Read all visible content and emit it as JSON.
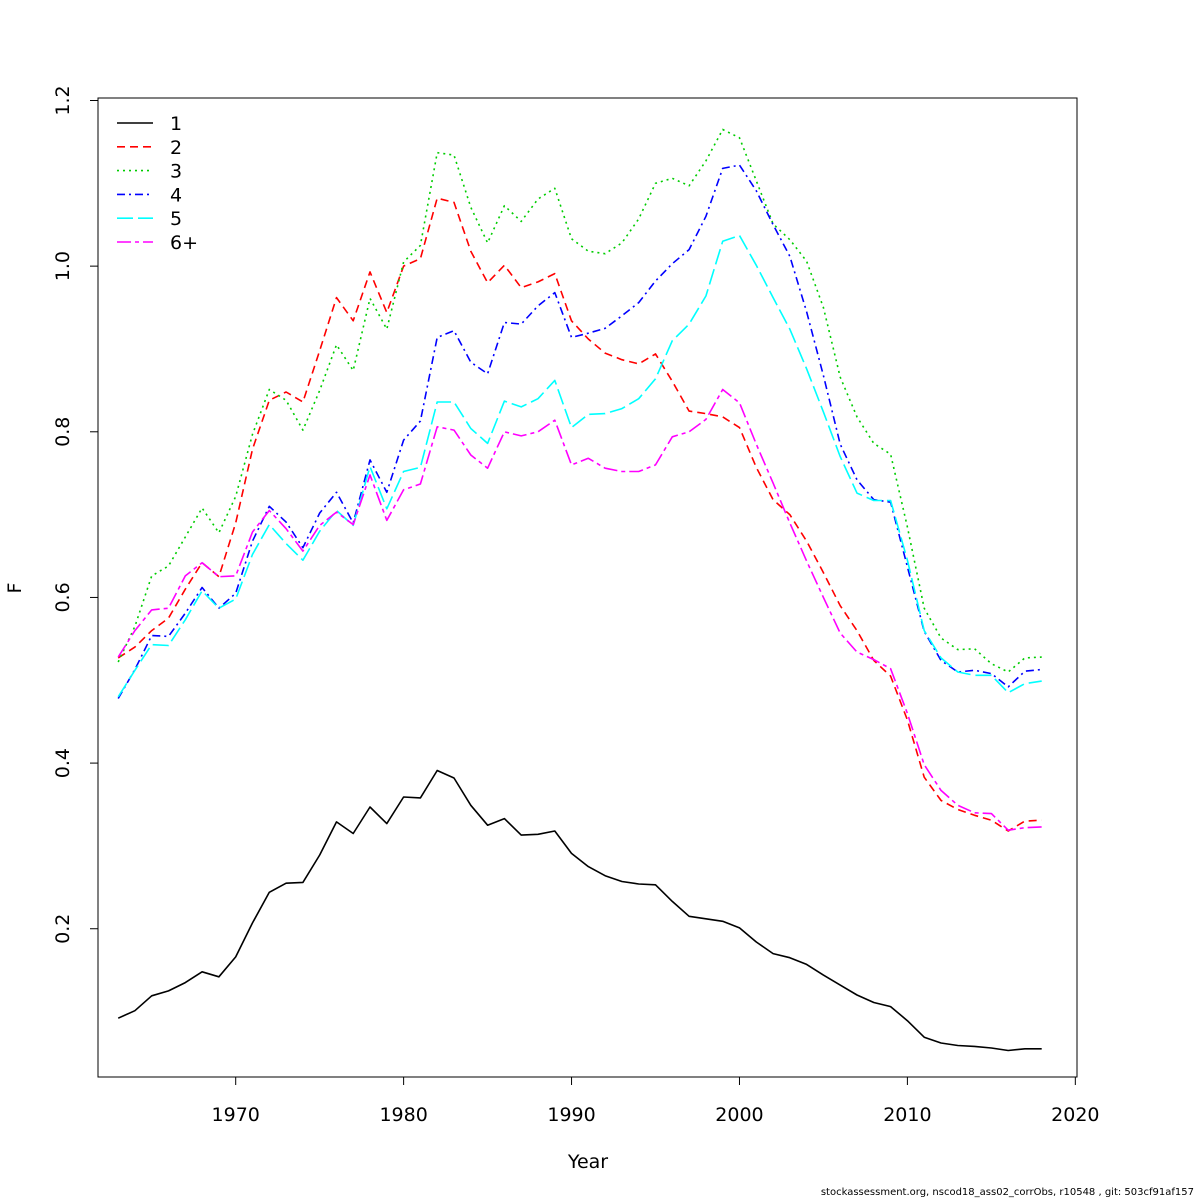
{
  "chart_data": {
    "type": "line",
    "title": "",
    "xlabel": "Year",
    "ylabel": "F",
    "xlim": [
      1961.8,
      2020.1
    ],
    "ylim": [
      0.021,
      1.203
    ],
    "x_ticks": [
      1970,
      1980,
      1990,
      2000,
      2010,
      2020
    ],
    "y_ticks": [
      0.2,
      0.4,
      0.6,
      0.8,
      1.0,
      1.2
    ],
    "x_tick_labels": [
      "1970",
      "1980",
      "1990",
      "2000",
      "2010",
      "2020"
    ],
    "y_tick_labels": [
      "0.2",
      "0.4",
      "0.6",
      "0.8",
      "1.0",
      "1.2"
    ],
    "grid": false,
    "legend_position": "top-left",
    "x": [
      1963,
      1964,
      1965,
      1966,
      1967,
      1968,
      1969,
      1970,
      1971,
      1972,
      1973,
      1974,
      1975,
      1976,
      1977,
      1978,
      1979,
      1980,
      1981,
      1982,
      1983,
      1984,
      1985,
      1986,
      1987,
      1988,
      1989,
      1990,
      1991,
      1992,
      1993,
      1994,
      1995,
      1996,
      1997,
      1998,
      1999,
      2000,
      2001,
      2002,
      2003,
      2004,
      2005,
      2006,
      2007,
      2008,
      2009,
      2010,
      2011,
      2012,
      2013,
      2014,
      2015,
      2016,
      2017,
      2018
    ],
    "series": [
      {
        "name": "1",
        "color": "#000000",
        "dash": "",
        "values": [
          0.092,
          0.101,
          0.119,
          0.125,
          0.135,
          0.148,
          0.142,
          0.166,
          0.207,
          0.244,
          0.255,
          0.256,
          0.289,
          0.329,
          0.315,
          0.347,
          0.327,
          0.359,
          0.358,
          0.391,
          0.382,
          0.349,
          0.325,
          0.333,
          0.313,
          0.314,
          0.318,
          0.291,
          0.275,
          0.264,
          0.257,
          0.254,
          0.253,
          0.233,
          0.215,
          0.212,
          0.209,
          0.201,
          0.184,
          0.17,
          0.165,
          0.157,
          0.144,
          0.132,
          0.12,
          0.111,
          0.106,
          0.089,
          0.069,
          0.062,
          0.059,
          0.058,
          0.056,
          0.053,
          0.055,
          0.055
        ]
      },
      {
        "name": "2",
        "color": "#ff0000",
        "dash": "8 5",
        "values": [
          0.527,
          0.54,
          0.56,
          0.575,
          0.61,
          0.642,
          0.625,
          0.69,
          0.779,
          0.838,
          0.848,
          0.836,
          0.898,
          0.962,
          0.934,
          0.993,
          0.944,
          1.0,
          1.009,
          1.082,
          1.077,
          1.018,
          0.98,
          1.001,
          0.974,
          0.981,
          0.991,
          0.934,
          0.912,
          0.895,
          0.887,
          0.882,
          0.894,
          0.861,
          0.825,
          0.822,
          0.818,
          0.805,
          0.757,
          0.718,
          0.7,
          0.668,
          0.63,
          0.59,
          0.56,
          0.524,
          0.505,
          0.452,
          0.383,
          0.355,
          0.344,
          0.337,
          0.331,
          0.318,
          0.33,
          0.331
        ]
      },
      {
        "name": "3",
        "color": "#00cd00",
        "dash": "2 4",
        "values": [
          0.522,
          0.565,
          0.626,
          0.638,
          0.673,
          0.708,
          0.678,
          0.722,
          0.797,
          0.851,
          0.838,
          0.802,
          0.85,
          0.905,
          0.874,
          0.961,
          0.924,
          1.005,
          1.025,
          1.137,
          1.134,
          1.071,
          1.028,
          1.073,
          1.054,
          1.081,
          1.094,
          1.033,
          1.018,
          1.015,
          1.028,
          1.057,
          1.1,
          1.106,
          1.097,
          1.127,
          1.165,
          1.155,
          1.103,
          1.051,
          1.032,
          1.006,
          0.95,
          0.866,
          0.818,
          0.786,
          0.773,
          0.685,
          0.587,
          0.551,
          0.537,
          0.538,
          0.52,
          0.51,
          0.527,
          0.528
        ]
      },
      {
        "name": "4",
        "color": "#0000ff",
        "dash": "8 4 2 4",
        "values": [
          0.478,
          0.513,
          0.554,
          0.553,
          0.581,
          0.612,
          0.587,
          0.605,
          0.668,
          0.71,
          0.691,
          0.66,
          0.702,
          0.727,
          0.69,
          0.766,
          0.727,
          0.79,
          0.813,
          0.914,
          0.922,
          0.884,
          0.87,
          0.932,
          0.93,
          0.952,
          0.968,
          0.914,
          0.919,
          0.925,
          0.94,
          0.956,
          0.982,
          1.003,
          1.02,
          1.06,
          1.118,
          1.122,
          1.091,
          1.05,
          1.012,
          0.945,
          0.868,
          0.785,
          0.742,
          0.718,
          0.715,
          0.637,
          0.559,
          0.524,
          0.51,
          0.512,
          0.508,
          0.492,
          0.511,
          0.513
        ]
      },
      {
        "name": "5",
        "color": "#00ffff",
        "dash": "16 5",
        "values": [
          0.48,
          0.512,
          0.543,
          0.542,
          0.573,
          0.608,
          0.587,
          0.598,
          0.652,
          0.688,
          0.665,
          0.645,
          0.68,
          0.705,
          0.687,
          0.758,
          0.707,
          0.752,
          0.757,
          0.836,
          0.836,
          0.804,
          0.786,
          0.837,
          0.83,
          0.84,
          0.862,
          0.805,
          0.821,
          0.822,
          0.828,
          0.84,
          0.864,
          0.91,
          0.93,
          0.964,
          1.03,
          1.037,
          1.001,
          0.962,
          0.924,
          0.876,
          0.824,
          0.77,
          0.726,
          0.717,
          0.717,
          0.645,
          0.56,
          0.527,
          0.51,
          0.506,
          0.506,
          0.485,
          0.496,
          0.499
        ]
      },
      {
        "name": "6+",
        "color": "#ff00ff",
        "dash": "14 4 4 4",
        "values": [
          0.528,
          0.56,
          0.585,
          0.587,
          0.626,
          0.642,
          0.625,
          0.626,
          0.679,
          0.705,
          0.683,
          0.656,
          0.687,
          0.703,
          0.688,
          0.748,
          0.693,
          0.73,
          0.737,
          0.806,
          0.802,
          0.772,
          0.756,
          0.8,
          0.795,
          0.8,
          0.814,
          0.76,
          0.768,
          0.756,
          0.752,
          0.752,
          0.76,
          0.794,
          0.8,
          0.815,
          0.851,
          0.835,
          0.785,
          0.738,
          0.69,
          0.644,
          0.6,
          0.557,
          0.534,
          0.525,
          0.514,
          0.46,
          0.398,
          0.367,
          0.349,
          0.34,
          0.339,
          0.319,
          0.322,
          0.323
        ]
      }
    ]
  },
  "footer_text": "stockassessment.org, nscod18_ass02_corrObs, r10548 , git: 503cf91af157"
}
